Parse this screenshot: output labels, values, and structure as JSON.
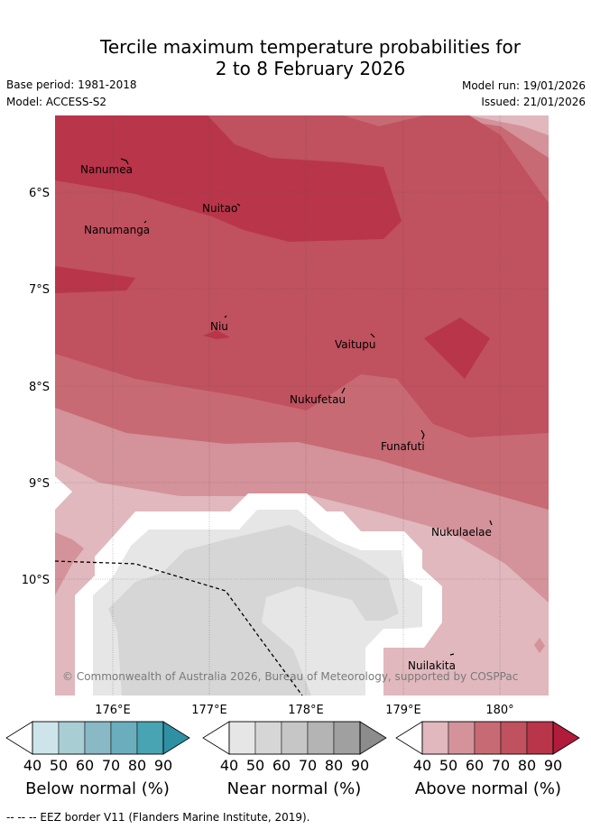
{
  "title": {
    "line1": "Tercile maximum temperature probabilities for",
    "line2": "2 to 8 February 2026"
  },
  "meta": {
    "base_period": "Base period: 1981-2018",
    "model": "Model: ACCESS-S2",
    "model_run": "Model run: 19/01/2026",
    "issued": "Issued: 21/01/2026"
  },
  "map": {
    "latitude_labels": [
      "6°S",
      "7°S",
      "8°S",
      "9°S",
      "10°S"
    ],
    "longitude_labels": [
      "176°E",
      "177°E",
      "178°E",
      "179°E",
      "180°"
    ],
    "places": [
      "Nanumea",
      "Nuitao",
      "Nanumanga",
      "Niu",
      "Vaitupu",
      "Nukufetau",
      "Funafuti",
      "Nukulaelae",
      "Nuilakita"
    ],
    "copyright": "© Commonwealth of Australia 2026, Bureau of Meteorology, supported by COSPPac"
  },
  "legend": {
    "ticks": [
      "40",
      "50",
      "60",
      "70",
      "80",
      "90"
    ],
    "below": {
      "title": "Below normal (%)",
      "colors": [
        "#ffffff",
        "#cde5ea",
        "#a8cdd3",
        "#88b9c5",
        "#6aaebe",
        "#48a3b2",
        "#2f8fa3"
      ]
    },
    "near": {
      "title": "Near normal (%)",
      "colors": [
        "#ffffff",
        "#e6e6e6",
        "#d6d6d6",
        "#c6c6c6",
        "#b4b4b4",
        "#a0a0a0",
        "#8c8c8c"
      ]
    },
    "above": {
      "title": "Above normal (%)",
      "colors": [
        "#ffffff",
        "#e0b8be",
        "#d4929a",
        "#c86a73",
        "#c0515e",
        "#b8354a",
        "#b01c3a"
      ]
    }
  },
  "footnote": "-- -- -- EEZ border V11 (Flanders Marine Institute, 2019)."
}
